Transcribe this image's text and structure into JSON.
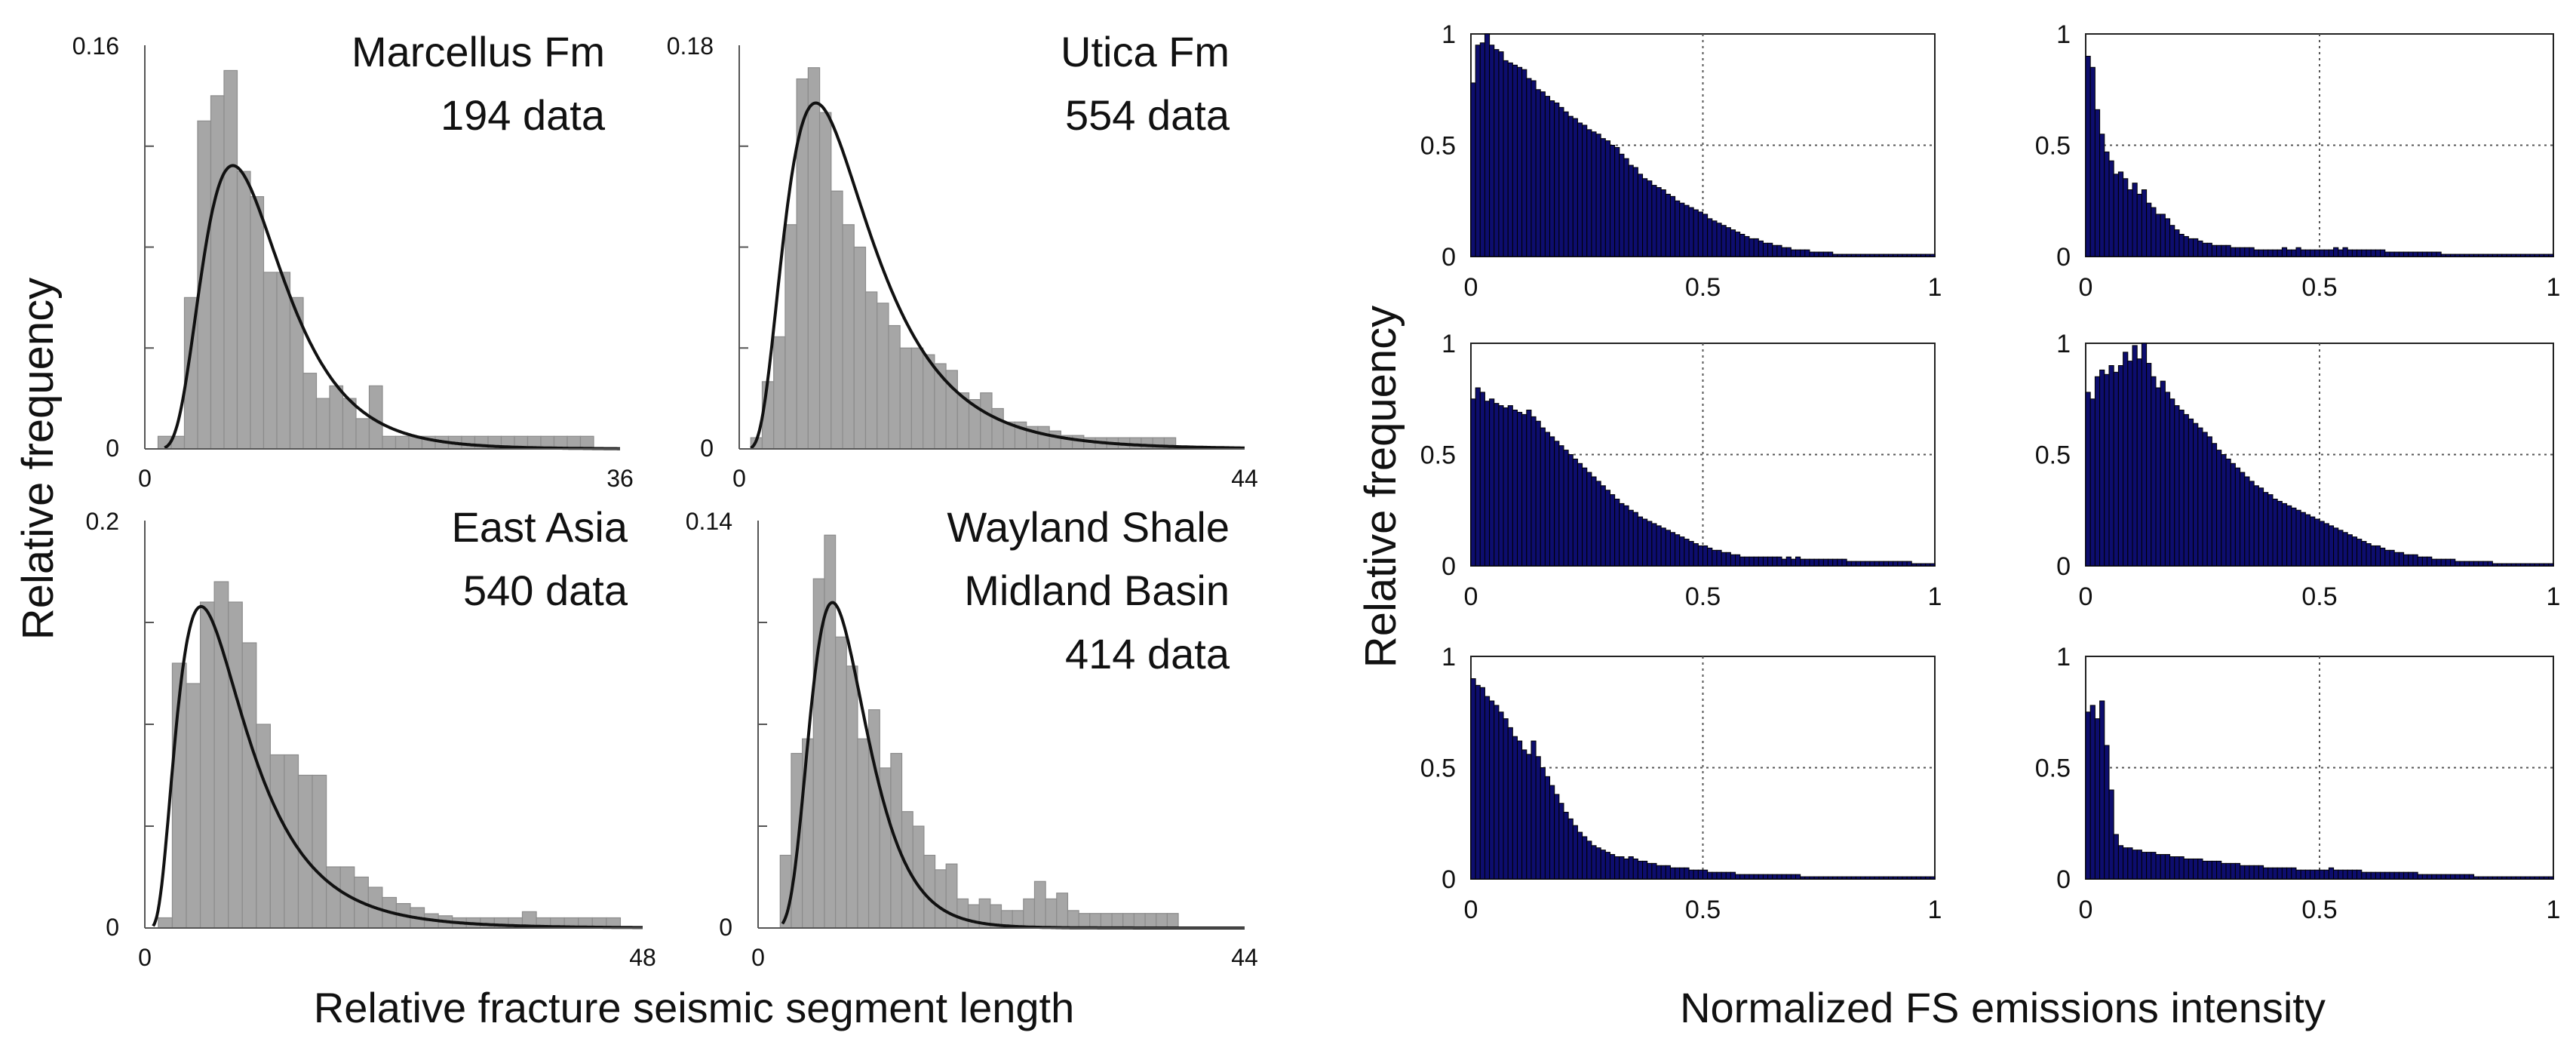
{
  "figure": {
    "left_ylabel": "Relative frequency",
    "left_xlabel": "Relative fracture seismic segment length",
    "right_ylabel": "Relative frequency",
    "right_xlabel": "Normalized FS emissions intensity"
  },
  "colors": {
    "hist_fill": "#a6a6a6",
    "hist_edge": "#8c8c8c",
    "curve": "#111111",
    "bar_fill": "#0d0d6e",
    "bar_edge": "#000000",
    "grid": "#555555"
  },
  "chart_data": [
    {
      "type": "bar",
      "title_lines": [
        "Marcellus Fm",
        "194 data"
      ],
      "xlabel": "Relative fracture seismic segment length",
      "ylabel": "Relative frequency",
      "xlim": [
        0,
        36
      ],
      "ylim": [
        0,
        0.16
      ],
      "xticks": [
        "0",
        "36"
      ],
      "yticks": [
        "0",
        "0.16"
      ],
      "bin_width": 1,
      "bins_x": [
        1,
        2,
        3,
        4,
        5,
        6,
        7,
        8,
        9,
        10,
        11,
        12,
        13,
        14,
        15,
        16,
        17,
        18,
        19,
        20,
        21,
        22,
        23,
        24,
        25,
        26,
        27,
        28,
        29,
        30,
        31,
        32,
        33
      ],
      "values": [
        0.005,
        0.005,
        0.06,
        0.13,
        0.14,
        0.15,
        0.11,
        0.1,
        0.07,
        0.07,
        0.06,
        0.03,
        0.02,
        0.025,
        0.02,
        0.012,
        0.025,
        0.005,
        0.005,
        0.005,
        0.005,
        0.005,
        0.005,
        0.005,
        0.005,
        0.005,
        0.005,
        0.005,
        0.005,
        0.005,
        0.005,
        0.005,
        0.005
      ],
      "fit_curve": {
        "type": "lognormal",
        "mu": 2.1,
        "sigma": 0.45,
        "scale": 0.935,
        "x_start": 1.5,
        "x_end": 36
      }
    },
    {
      "type": "bar",
      "title_lines": [
        "Utica Fm",
        "554 data"
      ],
      "xlabel": "Relative fracture seismic segment length",
      "ylabel": "Relative frequency",
      "xlim": [
        0,
        44
      ],
      "ylim": [
        0,
        0.18
      ],
      "xticks": [
        "0",
        "44"
      ],
      "yticks": [
        "0",
        "0.18"
      ],
      "bin_width": 1,
      "bins_x": [
        1,
        2,
        3,
        4,
        5,
        6,
        7,
        8,
        9,
        10,
        11,
        12,
        13,
        14,
        15,
        16,
        17,
        18,
        19,
        20,
        21,
        22,
        23,
        24,
        25,
        26,
        27,
        28,
        29,
        30,
        31,
        32,
        33,
        34,
        35,
        36,
        37
      ],
      "values": [
        0.005,
        0.03,
        0.05,
        0.1,
        0.165,
        0.17,
        0.15,
        0.115,
        0.1,
        0.09,
        0.07,
        0.065,
        0.055,
        0.045,
        0.045,
        0.042,
        0.038,
        0.035,
        0.025,
        0.022,
        0.025,
        0.018,
        0.012,
        0.012,
        0.01,
        0.01,
        0.008,
        0.006,
        0.006,
        0.005,
        0.005,
        0.005,
        0.005,
        0.005,
        0.005,
        0.005,
        0.005
      ],
      "fit_curve": {
        "type": "lognormal",
        "mu": 2.2,
        "sigma": 0.55,
        "scale": 1.65,
        "x_start": 1.0,
        "x_end": 44
      }
    },
    {
      "type": "bar",
      "title_lines": [
        "East Asia",
        "540 data"
      ],
      "xlabel": "Relative fracture seismic segment length",
      "ylabel": "Relative frequency",
      "xlim": [
        0,
        48
      ],
      "ylim": [
        0,
        0.2
      ],
      "xticks": [
        "0",
        "48"
      ],
      "yticks": [
        "0",
        "0.2"
      ],
      "bin_width": 1.35,
      "bins_x": [
        1.3,
        2.65,
        4.0,
        5.35,
        6.7,
        8.05,
        9.4,
        10.75,
        12.1,
        13.45,
        14.8,
        16.15,
        17.5,
        18.85,
        20.2,
        21.55,
        22.9,
        24.25,
        25.6,
        26.95,
        28.3,
        29.65,
        31.0,
        32.35,
        33.7,
        35.05,
        36.4,
        37.75,
        39.1,
        40.45,
        41.8,
        43.15,
        44.5
      ],
      "values": [
        0.005,
        0.13,
        0.12,
        0.16,
        0.17,
        0.16,
        0.14,
        0.1,
        0.085,
        0.085,
        0.075,
        0.075,
        0.03,
        0.03,
        0.025,
        0.02,
        0.015,
        0.012,
        0.01,
        0.007,
        0.006,
        0.005,
        0.005,
        0.005,
        0.005,
        0.005,
        0.008,
        0.005,
        0.005,
        0.005,
        0.005,
        0.005,
        0.005
      ],
      "fit_curve": {
        "type": "lognormal",
        "mu": 2.05,
        "sigma": 0.6,
        "scale": 1.54,
        "x_start": 0.8,
        "x_end": 48
      }
    },
    {
      "type": "bar",
      "title_lines": [
        "Wayland Shale",
        "Midland Basin",
        "414 data"
      ],
      "xlabel": "Relative fracture seismic segment length",
      "ylabel": "Relative frequency",
      "xlim": [
        0,
        44
      ],
      "ylim": [
        0,
        0.14
      ],
      "xticks": [
        "0",
        "44"
      ],
      "yticks": [
        "0",
        "0.14"
      ],
      "bin_width": 1,
      "bins_x": [
        2,
        3,
        4,
        5,
        6,
        7,
        8,
        9,
        10,
        11,
        12,
        13,
        14,
        15,
        16,
        17,
        18,
        19,
        20,
        21,
        22,
        23,
        24,
        25,
        26,
        27,
        28,
        29,
        30,
        31,
        32,
        33,
        34,
        35,
        36,
        37
      ],
      "values": [
        0.025,
        0.06,
        0.065,
        0.12,
        0.135,
        0.1,
        0.09,
        0.065,
        0.075,
        0.055,
        0.06,
        0.04,
        0.035,
        0.025,
        0.02,
        0.022,
        0.01,
        0.008,
        0.01,
        0.008,
        0.006,
        0.006,
        0.01,
        0.016,
        0.01,
        0.012,
        0.006,
        0.005,
        0.005,
        0.005,
        0.005,
        0.005,
        0.005,
        0.005,
        0.005,
        0.005
      ],
      "fit_curve": {
        "type": "lognormal",
        "mu": 2.05,
        "sigma": 0.38,
        "scale": 0.77,
        "x_start": 2.2,
        "x_end": 44
      }
    },
    {
      "type": "bar",
      "xlabel": "Normalized FS emissions intensity",
      "ylabel": "Relative frequency",
      "xlim": [
        0,
        1
      ],
      "ylim": [
        0,
        1
      ],
      "xticks": [
        "0",
        "0.5",
        "1"
      ],
      "yticks": [
        "0",
        "0.5",
        "1"
      ],
      "grid": true,
      "values": [
        0.78,
        0.95,
        0.96,
        1.0,
        0.95,
        0.93,
        0.92,
        0.88,
        0.87,
        0.86,
        0.85,
        0.84,
        0.8,
        0.79,
        0.75,
        0.74,
        0.72,
        0.7,
        0.69,
        0.67,
        0.65,
        0.63,
        0.62,
        0.6,
        0.59,
        0.57,
        0.56,
        0.55,
        0.53,
        0.52,
        0.5,
        0.49,
        0.46,
        0.44,
        0.41,
        0.4,
        0.37,
        0.35,
        0.34,
        0.32,
        0.31,
        0.3,
        0.28,
        0.27,
        0.25,
        0.24,
        0.23,
        0.22,
        0.21,
        0.2,
        0.19,
        0.17,
        0.16,
        0.15,
        0.14,
        0.13,
        0.12,
        0.11,
        0.1,
        0.09,
        0.08,
        0.08,
        0.07,
        0.06,
        0.06,
        0.05,
        0.05,
        0.04,
        0.04,
        0.03,
        0.03,
        0.03,
        0.03,
        0.02,
        0.02,
        0.02,
        0.02,
        0.02,
        0.01,
        0.01,
        0.01,
        0.01,
        0.01,
        0.01,
        0.01,
        0.01,
        0.01,
        0.01,
        0.01,
        0.01,
        0.01,
        0.01,
        0.01,
        0.01,
        0.01,
        0.01,
        0.01,
        0.01,
        0.01,
        0.01
      ]
    },
    {
      "type": "bar",
      "xlabel": "Normalized FS emissions intensity",
      "ylabel": "Relative frequency",
      "xlim": [
        0,
        1
      ],
      "ylim": [
        0,
        1
      ],
      "xticks": [
        "0",
        "0.5",
        "1"
      ],
      "yticks": [
        "0",
        "0.5",
        "1"
      ],
      "grid": true,
      "values": [
        0.9,
        0.85,
        0.66,
        0.55,
        0.47,
        0.43,
        0.37,
        0.38,
        0.35,
        0.3,
        0.33,
        0.28,
        0.3,
        0.24,
        0.22,
        0.19,
        0.19,
        0.17,
        0.14,
        0.12,
        0.1,
        0.09,
        0.08,
        0.08,
        0.07,
        0.06,
        0.06,
        0.05,
        0.05,
        0.05,
        0.05,
        0.04,
        0.04,
        0.04,
        0.04,
        0.04,
        0.03,
        0.03,
        0.03,
        0.03,
        0.03,
        0.03,
        0.04,
        0.03,
        0.03,
        0.04,
        0.03,
        0.03,
        0.03,
        0.03,
        0.03,
        0.03,
        0.03,
        0.04,
        0.03,
        0.04,
        0.03,
        0.03,
        0.03,
        0.03,
        0.03,
        0.03,
        0.03,
        0.03,
        0.02,
        0.02,
        0.02,
        0.02,
        0.02,
        0.02,
        0.02,
        0.02,
        0.02,
        0.02,
        0.02,
        0.02,
        0.01,
        0.01,
        0.01,
        0.01,
        0.01,
        0.01,
        0.01,
        0.01,
        0.01,
        0.01,
        0.01,
        0.01,
        0.01,
        0.01,
        0.01,
        0.01,
        0.01,
        0.01,
        0.01,
        0.01,
        0.01,
        0.01,
        0.01,
        0.01
      ]
    },
    {
      "type": "bar",
      "xlabel": "Normalized FS emissions intensity",
      "ylabel": "Relative frequency",
      "xlim": [
        0,
        1
      ],
      "ylim": [
        0,
        1
      ],
      "xticks": [
        "0",
        "0.5",
        "1"
      ],
      "yticks": [
        "0",
        "0.5",
        "1"
      ],
      "grid": true,
      "values": [
        0.75,
        0.8,
        0.78,
        0.74,
        0.75,
        0.73,
        0.72,
        0.71,
        0.72,
        0.7,
        0.69,
        0.68,
        0.7,
        0.67,
        0.65,
        0.62,
        0.6,
        0.58,
        0.56,
        0.54,
        0.52,
        0.5,
        0.48,
        0.46,
        0.44,
        0.42,
        0.4,
        0.38,
        0.36,
        0.34,
        0.32,
        0.3,
        0.28,
        0.27,
        0.25,
        0.24,
        0.22,
        0.21,
        0.2,
        0.19,
        0.18,
        0.17,
        0.16,
        0.15,
        0.14,
        0.13,
        0.12,
        0.11,
        0.1,
        0.09,
        0.09,
        0.08,
        0.07,
        0.07,
        0.06,
        0.06,
        0.05,
        0.05,
        0.04,
        0.04,
        0.04,
        0.04,
        0.04,
        0.04,
        0.04,
        0.04,
        0.04,
        0.03,
        0.04,
        0.03,
        0.04,
        0.03,
        0.03,
        0.03,
        0.03,
        0.03,
        0.03,
        0.03,
        0.03,
        0.03,
        0.03,
        0.02,
        0.02,
        0.02,
        0.02,
        0.02,
        0.02,
        0.02,
        0.02,
        0.02,
        0.02,
        0.02,
        0.02,
        0.02,
        0.02,
        0.01,
        0.01,
        0.01,
        0.01,
        0.01
      ]
    },
    {
      "type": "bar",
      "xlabel": "Normalized FS emissions intensity",
      "ylabel": "Relative frequency",
      "xlim": [
        0,
        1
      ],
      "ylim": [
        0,
        1
      ],
      "xticks": [
        "0",
        "0.5",
        "1"
      ],
      "yticks": [
        "0",
        "0.5",
        "1"
      ],
      "grid": true,
      "values": [
        0.78,
        0.75,
        0.85,
        0.88,
        0.86,
        0.9,
        0.87,
        0.9,
        0.96,
        0.92,
        0.99,
        0.93,
        1.0,
        0.91,
        0.85,
        0.8,
        0.83,
        0.78,
        0.75,
        0.72,
        0.7,
        0.68,
        0.66,
        0.64,
        0.62,
        0.6,
        0.58,
        0.55,
        0.52,
        0.5,
        0.48,
        0.46,
        0.44,
        0.42,
        0.4,
        0.38,
        0.36,
        0.35,
        0.33,
        0.32,
        0.3,
        0.29,
        0.28,
        0.27,
        0.26,
        0.25,
        0.24,
        0.23,
        0.22,
        0.21,
        0.2,
        0.19,
        0.18,
        0.17,
        0.16,
        0.15,
        0.14,
        0.13,
        0.12,
        0.11,
        0.1,
        0.09,
        0.09,
        0.08,
        0.07,
        0.07,
        0.06,
        0.06,
        0.05,
        0.05,
        0.05,
        0.04,
        0.04,
        0.04,
        0.03,
        0.03,
        0.03,
        0.03,
        0.03,
        0.02,
        0.02,
        0.02,
        0.02,
        0.02,
        0.02,
        0.02,
        0.02,
        0.01,
        0.01,
        0.01,
        0.01,
        0.01,
        0.01,
        0.01,
        0.01,
        0.01,
        0.01,
        0.01,
        0.01,
        0.01
      ]
    },
    {
      "type": "bar",
      "xlabel": "Normalized FS emissions intensity",
      "ylabel": "Relative frequency",
      "xlim": [
        0,
        1
      ],
      "ylim": [
        0,
        1
      ],
      "xticks": [
        "0",
        "0.5",
        "1"
      ],
      "yticks": [
        "0",
        "0.5",
        "1"
      ],
      "grid": true,
      "values": [
        0.9,
        0.87,
        0.86,
        0.82,
        0.8,
        0.78,
        0.75,
        0.72,
        0.68,
        0.64,
        0.62,
        0.58,
        0.56,
        0.62,
        0.55,
        0.5,
        0.46,
        0.42,
        0.38,
        0.34,
        0.3,
        0.27,
        0.24,
        0.21,
        0.19,
        0.17,
        0.15,
        0.14,
        0.13,
        0.12,
        0.11,
        0.1,
        0.1,
        0.09,
        0.1,
        0.09,
        0.08,
        0.08,
        0.07,
        0.07,
        0.06,
        0.06,
        0.06,
        0.05,
        0.05,
        0.05,
        0.05,
        0.04,
        0.04,
        0.04,
        0.04,
        0.03,
        0.03,
        0.03,
        0.03,
        0.03,
        0.03,
        0.02,
        0.02,
        0.02,
        0.02,
        0.02,
        0.02,
        0.02,
        0.02,
        0.02,
        0.02,
        0.02,
        0.02,
        0.02,
        0.02,
        0.01,
        0.01,
        0.01,
        0.01,
        0.01,
        0.01,
        0.01,
        0.01,
        0.01,
        0.01,
        0.01,
        0.01,
        0.01,
        0.01,
        0.01,
        0.01,
        0.01,
        0.01,
        0.01,
        0.01,
        0.01,
        0.01,
        0.01,
        0.01,
        0.01,
        0.01,
        0.01,
        0.01,
        0.01
      ]
    },
    {
      "type": "bar",
      "xlabel": "Normalized FS emissions intensity",
      "ylabel": "Relative frequency",
      "xlim": [
        0,
        1
      ],
      "ylim": [
        0,
        1
      ],
      "xticks": [
        "0",
        "0.5",
        "1"
      ],
      "yticks": [
        "0",
        "0.5",
        "1"
      ],
      "grid": true,
      "values": [
        0.75,
        0.78,
        0.72,
        0.8,
        0.6,
        0.4,
        0.2,
        0.15,
        0.14,
        0.14,
        0.13,
        0.13,
        0.12,
        0.12,
        0.12,
        0.11,
        0.11,
        0.11,
        0.1,
        0.1,
        0.1,
        0.09,
        0.09,
        0.09,
        0.09,
        0.08,
        0.08,
        0.08,
        0.08,
        0.07,
        0.07,
        0.07,
        0.07,
        0.06,
        0.06,
        0.06,
        0.06,
        0.06,
        0.05,
        0.05,
        0.05,
        0.05,
        0.05,
        0.05,
        0.05,
        0.04,
        0.04,
        0.04,
        0.04,
        0.04,
        0.04,
        0.04,
        0.05,
        0.04,
        0.04,
        0.04,
        0.04,
        0.04,
        0.04,
        0.03,
        0.03,
        0.03,
        0.03,
        0.03,
        0.03,
        0.03,
        0.03,
        0.03,
        0.03,
        0.03,
        0.03,
        0.02,
        0.02,
        0.02,
        0.02,
        0.02,
        0.02,
        0.02,
        0.02,
        0.02,
        0.02,
        0.02,
        0.02,
        0.01,
        0.01,
        0.01,
        0.01,
        0.01,
        0.01,
        0.01,
        0.01,
        0.01,
        0.01,
        0.01,
        0.01,
        0.01,
        0.01,
        0.01,
        0.01,
        0.01
      ]
    }
  ]
}
